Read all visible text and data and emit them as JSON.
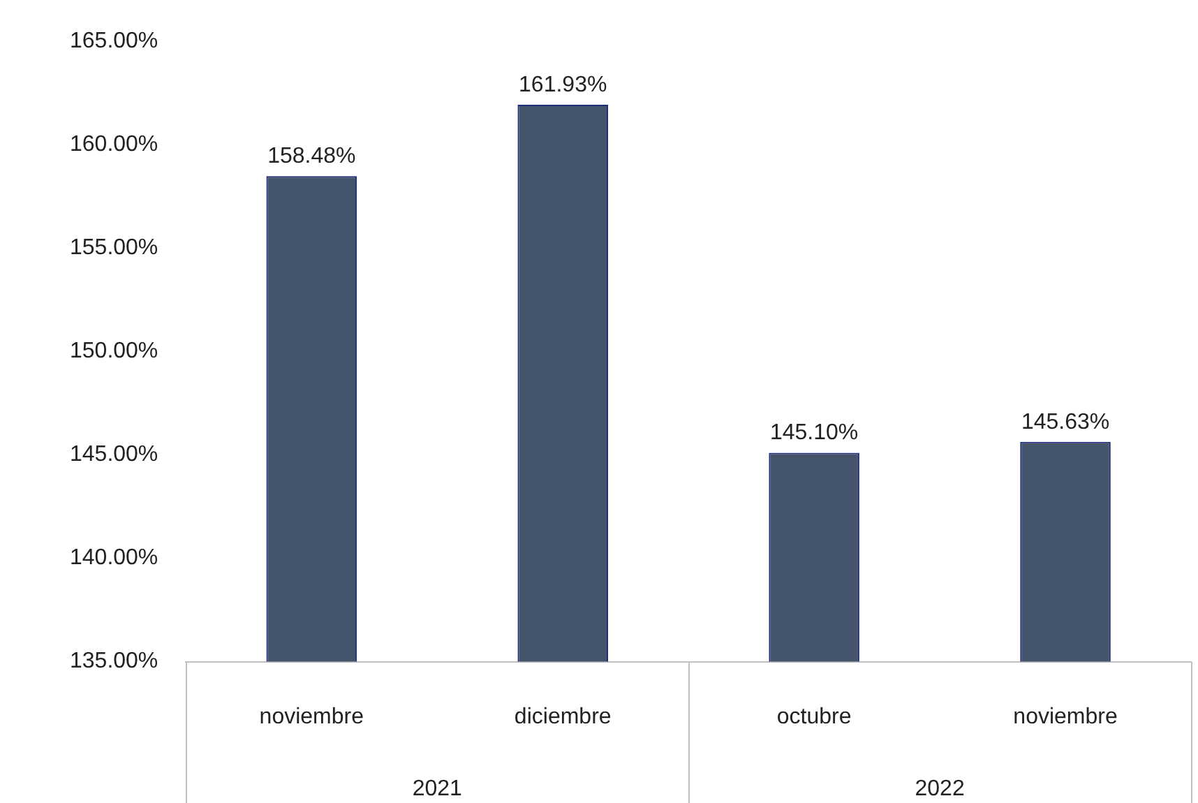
{
  "chart_data": {
    "type": "bar",
    "categories": [
      "noviembre",
      "diciembre",
      "octubre",
      "noviembre"
    ],
    "values": [
      158.48,
      161.93,
      145.1,
      145.63
    ],
    "value_labels": [
      "158.48%",
      "161.93%",
      "145.10%",
      "145.63%"
    ],
    "color": "#44546a",
    "ylim": [
      135,
      165
    ],
    "yticks": [
      {
        "value": 135,
        "label": "135.00%"
      },
      {
        "value": 140,
        "label": "140.00%"
      },
      {
        "value": 145,
        "label": "145.00%"
      },
      {
        "value": 150,
        "label": "150.00%"
      },
      {
        "value": 155,
        "label": "155.00%"
      },
      {
        "value": 160,
        "label": "160.00%"
      },
      {
        "value": 165,
        "label": "165.00%"
      }
    ],
    "annotations": [
      "2021",
      "2022"
    ],
    "grid": false,
    "legend": false
  }
}
